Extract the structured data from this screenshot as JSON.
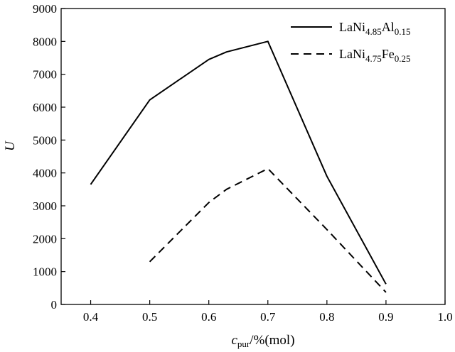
{
  "chart_data": {
    "type": "line",
    "title": "",
    "xlabel": {
      "var": "c",
      "sub": "pur",
      "rest": "/%(mol)"
    },
    "ylabel": "U",
    "xlim": [
      0.35,
      1.0
    ],
    "ylim": [
      0,
      9000
    ],
    "xticks": [
      "0.4",
      "0.5",
      "0.6",
      "0.7",
      "0.8",
      "0.9",
      "1.0"
    ],
    "yticks": [
      "0",
      "1000",
      "2000",
      "3000",
      "4000",
      "5000",
      "6000",
      "7000",
      "8000",
      "9000"
    ],
    "grid": false,
    "legend_position": "top-right",
    "series": [
      {
        "name": "LaNi4.85Al0.15",
        "name_parts": [
          [
            "LaNi",
            false
          ],
          [
            "4.85",
            true
          ],
          [
            "Al",
            false
          ],
          [
            "0.15",
            true
          ]
        ],
        "style": "solid",
        "color": "#000000",
        "x": [
          0.4,
          0.5,
          0.6,
          0.63,
          0.7,
          0.8,
          0.9
        ],
        "y": [
          3650,
          6220,
          7450,
          7680,
          8000,
          3900,
          620
        ]
      },
      {
        "name": "LaNi4.75Fe0.25",
        "name_parts": [
          [
            "LaNi",
            false
          ],
          [
            "4.75",
            true
          ],
          [
            "Fe",
            false
          ],
          [
            "0.25",
            true
          ]
        ],
        "style": "dashed",
        "color": "#000000",
        "x": [
          0.5,
          0.6,
          0.63,
          0.7,
          0.8,
          0.9
        ],
        "y": [
          1300,
          3100,
          3500,
          4130,
          2280,
          370
        ]
      }
    ]
  }
}
